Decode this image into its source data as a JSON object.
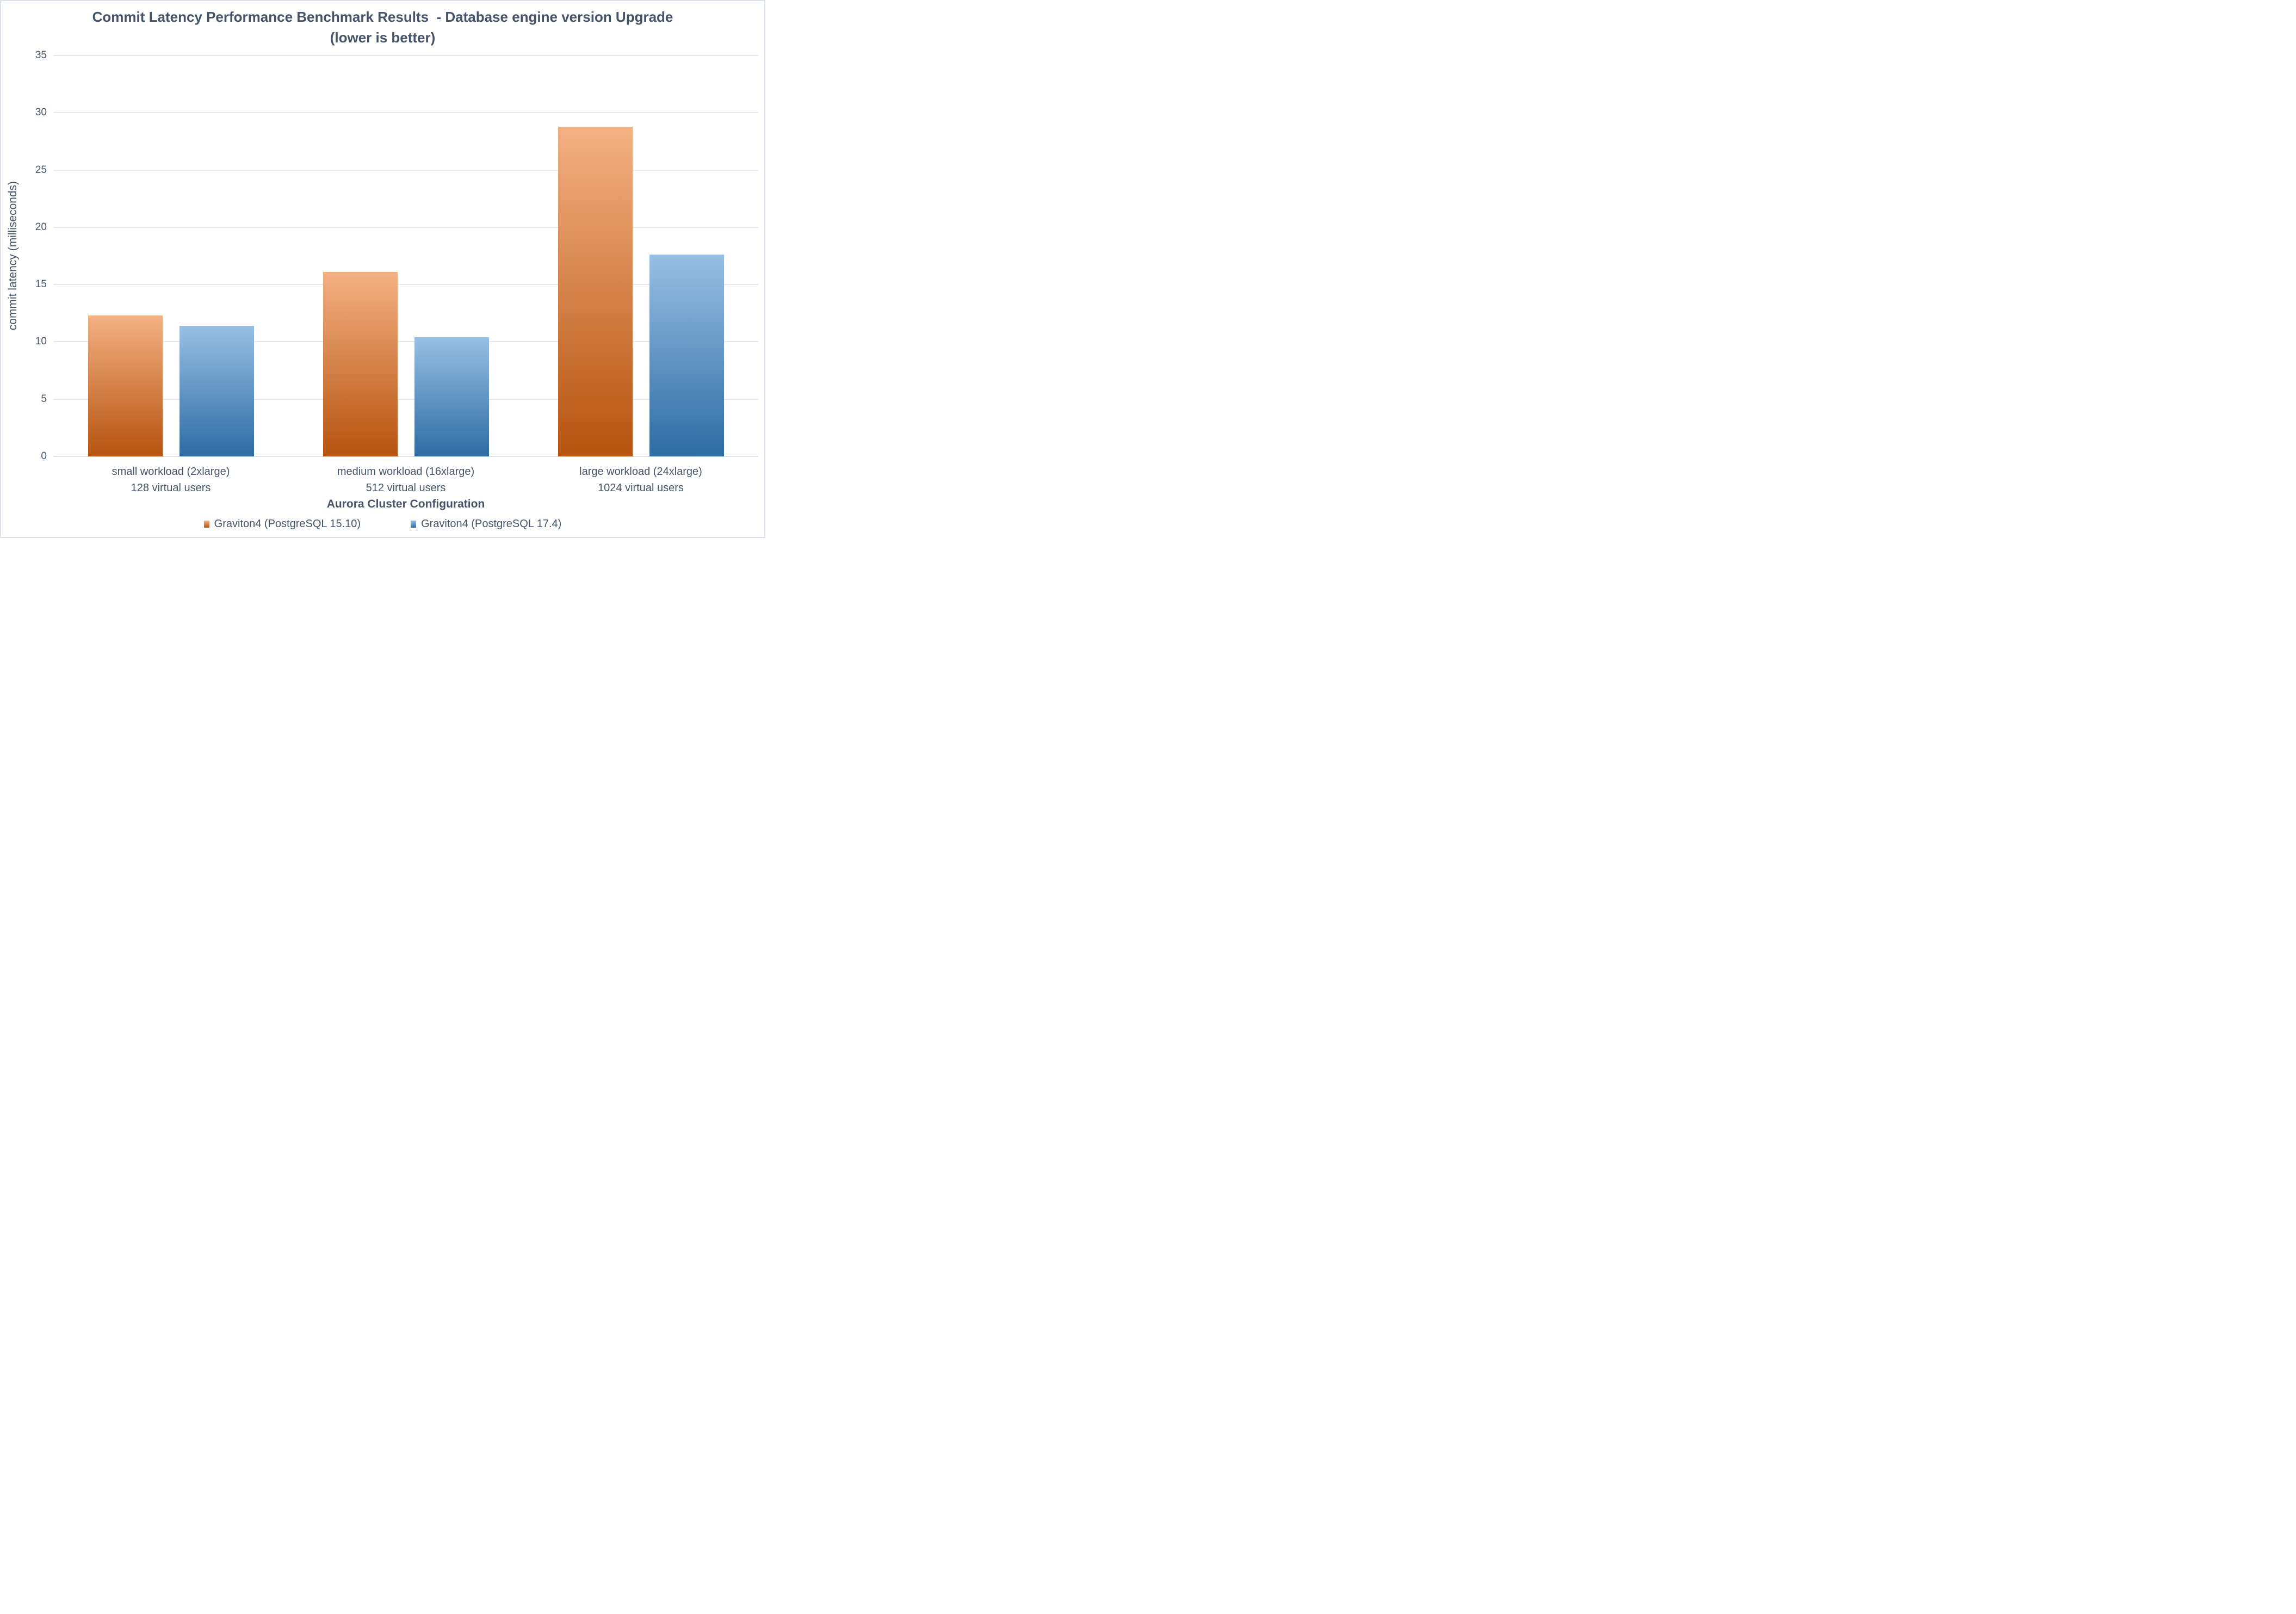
{
  "header": {
    "title_line1": "Commit Latency Performance Benchmark Results  - Database engine version Upgrade",
    "title_line2": "(lower is better)"
  },
  "chart_data": {
    "type": "bar",
    "title": "Commit Latency Performance Benchmark Results - Database engine version Upgrade (lower is better)",
    "xlabel": "Aurora Cluster Configuration",
    "ylabel": "commit latency (milliseconds)",
    "ylim": [
      0,
      35
    ],
    "ytick_step": 5,
    "grid": true,
    "legend_position": "bottom",
    "categories": [
      {
        "line1": "small workload (2xlarge)",
        "line2": "128 virtual users"
      },
      {
        "line1": "medium workload (16xlarge)",
        "line2": "512 virtual users"
      },
      {
        "line1": "large workload (24xlarge)",
        "line2": "1024 virtual users"
      }
    ],
    "series": [
      {
        "name": "Graviton4 (PostgreSQL 15.10)",
        "values": [
          12.3,
          16.1,
          28.8
        ],
        "color_top": "#F4B183",
        "color_bottom": "#B5530F"
      },
      {
        "name": "Graviton4 (PostgreSQL 17.4)",
        "values": [
          11.4,
          10.4,
          17.6
        ],
        "color_top": "#97BFE4",
        "color_bottom": "#2E6CA4"
      }
    ],
    "colors": {
      "text": "#44546A",
      "gridline": "#E4E9F1",
      "page_border": "#DBE2EC"
    }
  }
}
